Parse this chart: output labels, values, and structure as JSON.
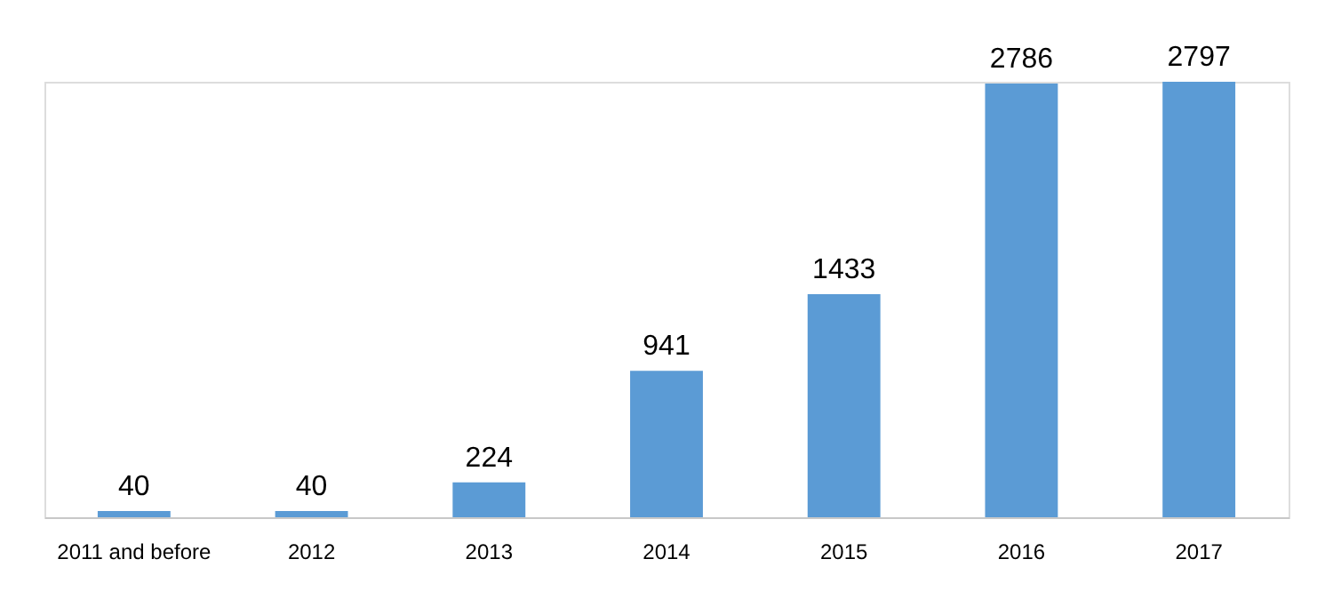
{
  "chart_data": {
    "type": "bar",
    "categories": [
      "2011 and before",
      "2012",
      "2013",
      "2014",
      "2015",
      "2016",
      "2017"
    ],
    "values": [
      40,
      40,
      224,
      941,
      1433,
      2786,
      2797
    ],
    "color": "#5b9bd5",
    "data_labels": true
  }
}
